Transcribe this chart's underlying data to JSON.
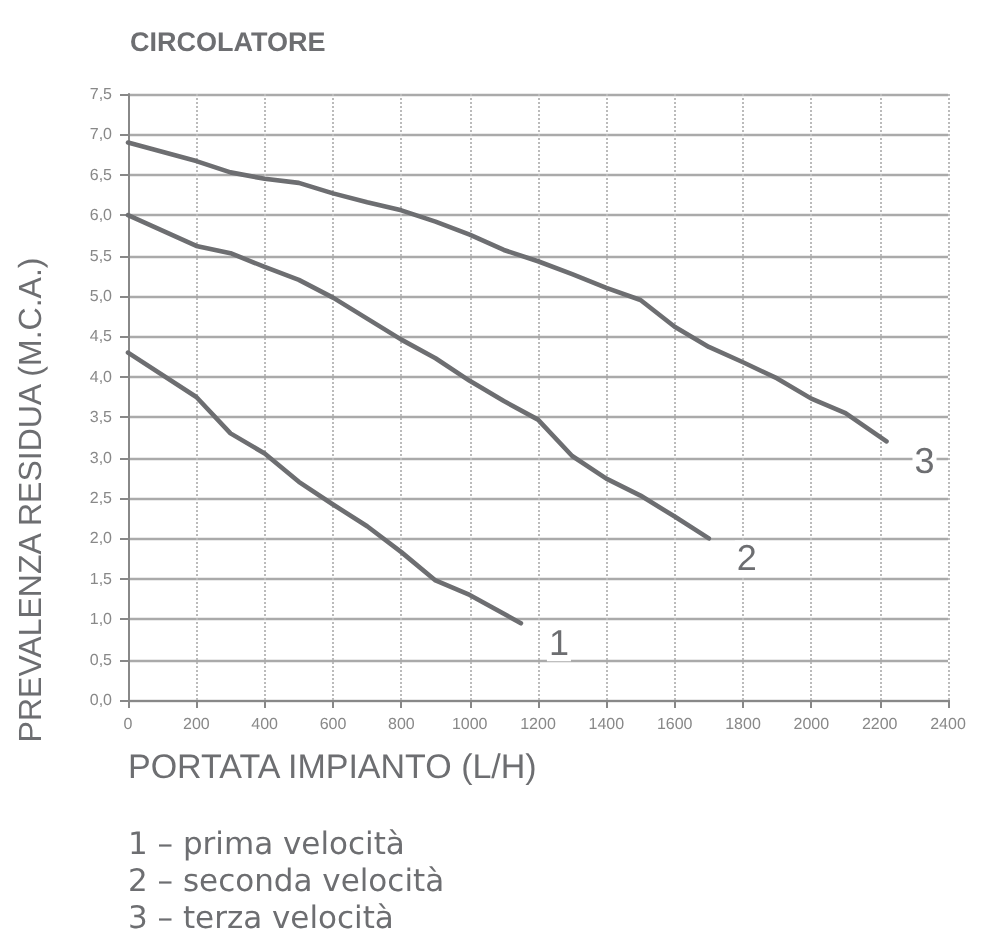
{
  "chart_data": {
    "type": "line",
    "title": "CIRCOLATORE",
    "xlabel": "PORTATA IMPIANTO (L/H)",
    "ylabel": "PREVALENZA RESIDUA (M.C.A.)",
    "series": [
      {
        "name": "1",
        "color": "#6d6e71",
        "x": [
          0,
          200,
          300,
          400,
          500,
          600,
          700,
          800,
          900,
          1000,
          1150
        ],
        "values": [
          4.3,
          3.75,
          3.3,
          3.05,
          2.7,
          2.42,
          2.15,
          1.83,
          1.48,
          1.3,
          0.95
        ]
      },
      {
        "name": "2",
        "color": "#6d6e71",
        "x": [
          0,
          200,
          300,
          400,
          500,
          600,
          700,
          800,
          900,
          1000,
          1100,
          1200,
          1300,
          1400,
          1500,
          1600,
          1700
        ],
        "values": [
          6.0,
          5.62,
          5.53,
          5.36,
          5.2,
          4.98,
          4.72,
          4.46,
          4.23,
          3.95,
          3.7,
          3.47,
          3.02,
          2.74,
          2.53,
          2.27,
          2.0
        ]
      },
      {
        "name": "3",
        "color": "#6d6e71",
        "x": [
          0,
          200,
          300,
          400,
          500,
          600,
          700,
          800,
          900,
          1000,
          1100,
          1200,
          1300,
          1400,
          1500,
          1600,
          1700,
          1800,
          1900,
          2000,
          2100,
          2220
        ],
        "values": [
          6.9,
          6.67,
          6.53,
          6.45,
          6.4,
          6.27,
          6.16,
          6.06,
          5.92,
          5.76,
          5.57,
          5.43,
          5.27,
          5.1,
          4.95,
          4.62,
          4.37,
          4.18,
          3.98,
          3.73,
          3.55,
          3.2
        ]
      }
    ],
    "xlim": [
      0,
      2400
    ],
    "xticks": [
      0,
      200,
      400,
      600,
      800,
      1000,
      1200,
      1400,
      1600,
      1800,
      2000,
      2200,
      2400
    ],
    "ylim": [
      0,
      7.5
    ],
    "yticks": [
      {
        "value": 0,
        "label": "0,0"
      },
      {
        "value": 0.5,
        "label": "0,5"
      },
      {
        "value": 1,
        "label": "1,0"
      },
      {
        "value": 1.5,
        "label": "1,5"
      },
      {
        "value": 2,
        "label": "2,0"
      },
      {
        "value": 2.5,
        "label": "2,5"
      },
      {
        "value": 3,
        "label": "3,0"
      },
      {
        "value": 3.5,
        "label": "3,5"
      },
      {
        "value": 4,
        "label": "4,0"
      },
      {
        "value": 4.5,
        "label": "4,5"
      },
      {
        "value": 5,
        "label": "5,0"
      },
      {
        "value": 5.5,
        "label": "5,5"
      },
      {
        "value": 6,
        "label": "6,0"
      },
      {
        "value": 6.5,
        "label": "6,5"
      },
      {
        "value": 7,
        "label": "7,0"
      },
      {
        "value": 7.5,
        "label": "7,5"
      }
    ],
    "grid": true,
    "marker": "none",
    "line_style": "solid",
    "annotations": [
      "1 – prima velocità",
      "2 – seconda velocità",
      "3 – terza velocità"
    ]
  }
}
